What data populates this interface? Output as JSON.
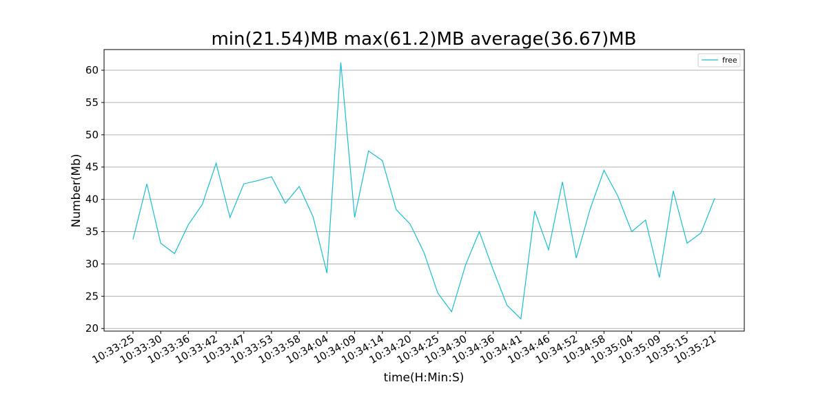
{
  "chart_data": {
    "type": "line",
    "title": "min(21.54)MB max(61.2)MB average(36.67)MB",
    "xlabel": "time(H:Min:S)",
    "ylabel": "Number(Mb)",
    "ylim": [
      19.6,
      63.2
    ],
    "yticks": [
      20,
      25,
      30,
      35,
      40,
      45,
      50,
      55,
      60
    ],
    "xtick_labels": [
      "10:33:25",
      "10:33:30",
      "10:33:36",
      "10:33:42",
      "10:33:47",
      "10:33:53",
      "10:33:58",
      "10:34:04",
      "10:34:09",
      "10:34:14",
      "10:34:20",
      "10:34:25",
      "10:34:30",
      "10:34:36",
      "10:34:41",
      "10:34:46",
      "10:34:52",
      "10:34:58",
      "10:35:04",
      "10:35:09",
      "10:35:15",
      "10:35:21"
    ],
    "grid": "horizontal",
    "legend_position": "top-right",
    "series": [
      {
        "name": "free",
        "color": "#17becf",
        "values": [
          33.8,
          42.4,
          33.2,
          31.6,
          36.1,
          39.2,
          45.6,
          37.2,
          42.4,
          42.9,
          43.5,
          39.4,
          42.0,
          37.3,
          28.6,
          61.2,
          37.2,
          47.5,
          46.0,
          38.4,
          36.2,
          31.8,
          25.5,
          22.6,
          29.8,
          35.0,
          29.1,
          23.6,
          21.5,
          38.2,
          32.2,
          42.7,
          30.9,
          38.5,
          44.5,
          40.5,
          35.0,
          36.8,
          27.9,
          41.3,
          33.2,
          34.8,
          40.2
        ]
      }
    ]
  }
}
